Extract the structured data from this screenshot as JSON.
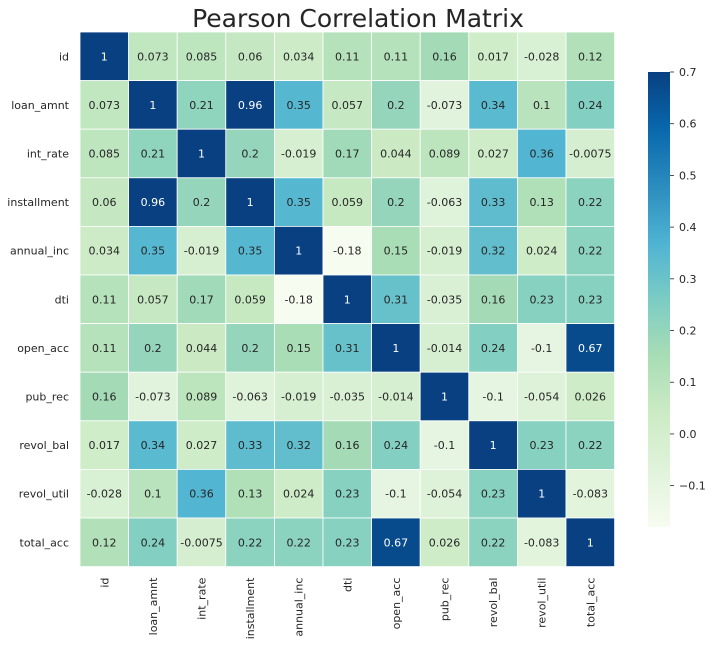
{
  "chart_data": {
    "type": "heatmap",
    "title": "Pearson Correlation Matrix",
    "xlabel": "",
    "ylabel": "",
    "row_labels": [
      "id",
      "loan_amnt",
      "int_rate",
      "installment",
      "annual_inc",
      "dti",
      "open_acc",
      "pub_rec",
      "revol_bal",
      "revol_util",
      "total_acc"
    ],
    "col_labels": [
      "id",
      "loan_amnt",
      "int_rate",
      "installment",
      "annual_inc",
      "dti",
      "open_acc",
      "pub_rec",
      "revol_bal",
      "revol_util",
      "total_acc"
    ],
    "values": [
      [
        1,
        0.073,
        0.085,
        0.06,
        0.034,
        0.11,
        0.11,
        0.16,
        0.017,
        -0.028,
        0.12
      ],
      [
        0.073,
        1,
        0.21,
        0.96,
        0.35,
        0.057,
        0.2,
        -0.073,
        0.34,
        0.1,
        0.24
      ],
      [
        0.085,
        0.21,
        1,
        0.2,
        -0.019,
        0.17,
        0.044,
        0.089,
        0.027,
        0.36,
        -0.0075
      ],
      [
        0.06,
        0.96,
        0.2,
        1,
        0.35,
        0.059,
        0.2,
        -0.063,
        0.33,
        0.13,
        0.22
      ],
      [
        0.034,
        0.35,
        -0.019,
        0.35,
        1,
        -0.18,
        0.15,
        -0.019,
        0.32,
        0.024,
        0.22
      ],
      [
        0.11,
        0.057,
        0.17,
        0.059,
        -0.18,
        1,
        0.31,
        -0.035,
        0.16,
        0.23,
        0.23
      ],
      [
        0.11,
        0.2,
        0.044,
        0.2,
        0.15,
        0.31,
        1,
        -0.014,
        0.24,
        -0.1,
        0.67
      ],
      [
        0.16,
        -0.073,
        0.089,
        -0.063,
        -0.019,
        -0.035,
        -0.014,
        1,
        -0.1,
        -0.054,
        0.026
      ],
      [
        0.017,
        0.34,
        0.027,
        0.33,
        0.32,
        0.16,
        0.24,
        -0.1,
        1,
        0.23,
        0.22
      ],
      [
        -0.028,
        0.1,
        0.36,
        0.13,
        0.024,
        0.23,
        -0.1,
        -0.054,
        0.23,
        1,
        -0.083
      ],
      [
        0.12,
        0.24,
        -0.0075,
        0.22,
        0.22,
        0.23,
        0.67,
        0.026,
        0.22,
        -0.083,
        1
      ]
    ],
    "labels": [
      [
        "1",
        "0.073",
        "0.085",
        "0.06",
        "0.034",
        "0.11",
        "0.11",
        "0.16",
        "0.017",
        "-0.028",
        "0.12"
      ],
      [
        "0.073",
        "1",
        "0.21",
        "0.96",
        "0.35",
        "0.057",
        "0.2",
        "-0.073",
        "0.34",
        "0.1",
        "0.24"
      ],
      [
        "0.085",
        "0.21",
        "1",
        "0.2",
        "-0.019",
        "0.17",
        "0.044",
        "0.089",
        "0.027",
        "0.36",
        "-0.0075"
      ],
      [
        "0.06",
        "0.96",
        "0.2",
        "1",
        "0.35",
        "0.059",
        "0.2",
        "-0.063",
        "0.33",
        "0.13",
        "0.22"
      ],
      [
        "0.034",
        "0.35",
        "-0.019",
        "0.35",
        "1",
        "-0.18",
        "0.15",
        "-0.019",
        "0.32",
        "0.024",
        "0.22"
      ],
      [
        "0.11",
        "0.057",
        "0.17",
        "0.059",
        "-0.18",
        "1",
        "0.31",
        "-0.035",
        "0.16",
        "0.23",
        "0.23"
      ],
      [
        "0.11",
        "0.2",
        "0.044",
        "0.2",
        "0.15",
        "0.31",
        "1",
        "-0.014",
        "0.24",
        "-0.1",
        "0.67"
      ],
      [
        "0.16",
        "-0.073",
        "0.089",
        "-0.063",
        "-0.019",
        "-0.035",
        "-0.014",
        "1",
        "-0.1",
        "-0.054",
        "0.026"
      ],
      [
        "0.017",
        "0.34",
        "0.027",
        "0.33",
        "0.32",
        "0.16",
        "0.24",
        "-0.1",
        "1",
        "0.23",
        "0.22"
      ],
      [
        "-0.028",
        "0.1",
        "0.36",
        "0.13",
        "0.024",
        "0.23",
        "-0.1",
        "-0.054",
        "0.23",
        "1",
        "-0.083"
      ],
      [
        "0.12",
        "0.24",
        "-0.0075",
        "0.22",
        "0.22",
        "0.23",
        "0.67",
        "0.026",
        "0.22",
        "-0.083",
        "1"
      ]
    ],
    "colormap": "GnBu",
    "vmin": -0.18,
    "vmax": 0.7,
    "colorbar": {
      "ticks": [
        -0.1,
        0.0,
        0.1,
        0.2,
        0.3,
        0.4,
        0.5,
        0.6,
        0.7
      ],
      "tick_labels": [
        "−0.1",
        "0.0",
        "0.1",
        "0.2",
        "0.3",
        "0.4",
        "0.5",
        "0.6",
        "0.7"
      ]
    },
    "colormap_stops": [
      "#f7fcf0",
      "#e0f3db",
      "#ccebc5",
      "#a8ddb5",
      "#7bccc4",
      "#4eb3d3",
      "#2b8cbe",
      "#0868ac",
      "#084081"
    ],
    "grid": false,
    "legend": "colorbar-right"
  }
}
